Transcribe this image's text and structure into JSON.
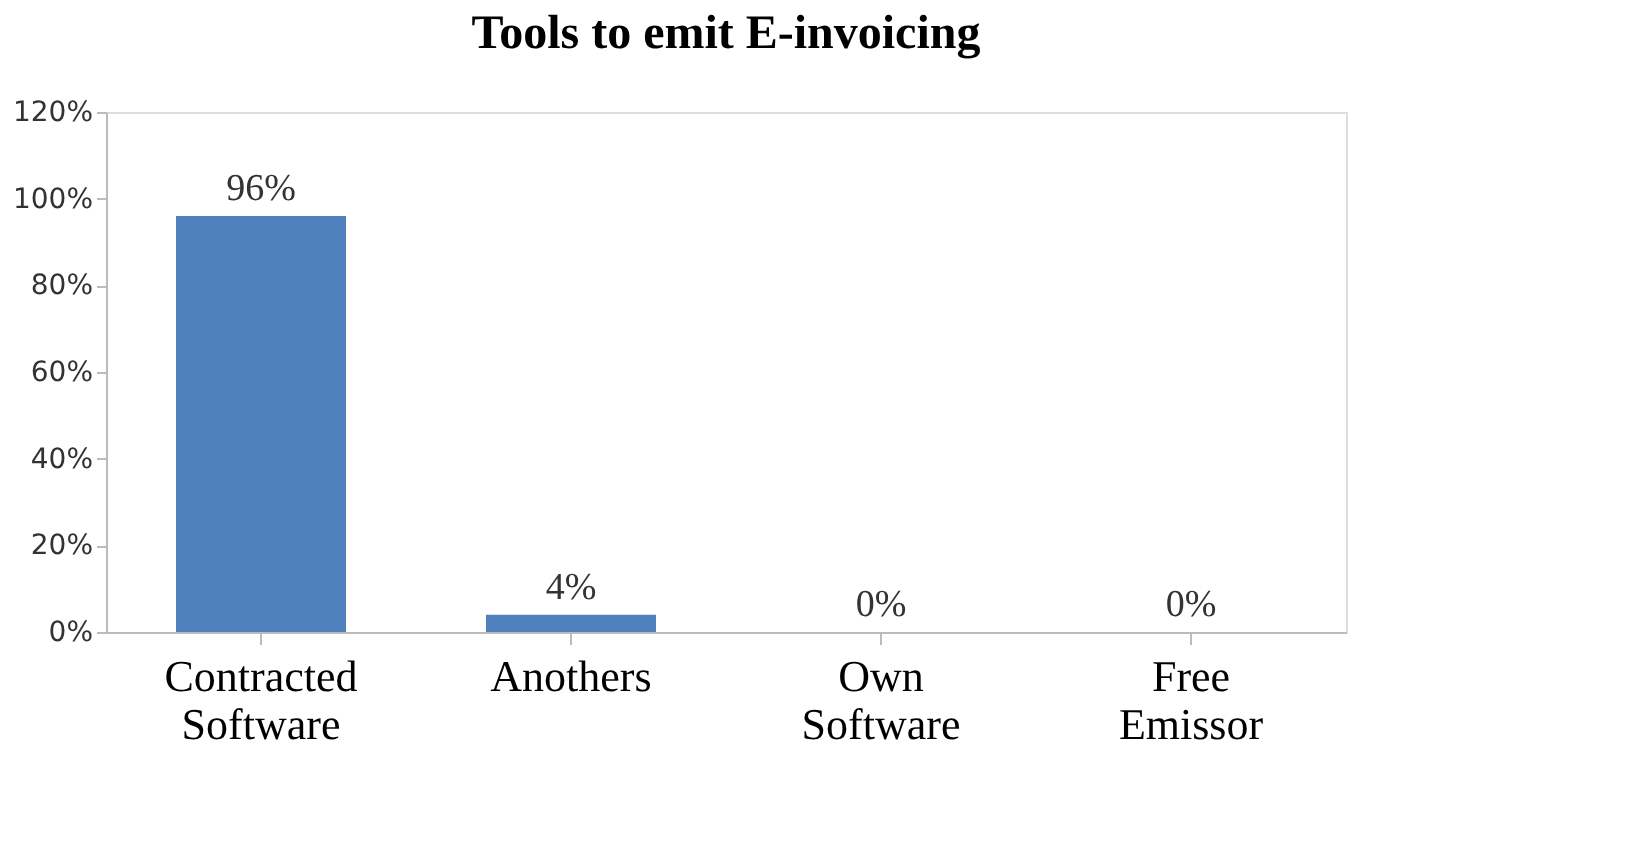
{
  "chart_data": {
    "type": "bar",
    "title": "Tools to emit E-invoicing",
    "categories": [
      "Contracted Software",
      "Anothers",
      "Own Software",
      "Free Emissor"
    ],
    "values": [
      96,
      4,
      0,
      0
    ],
    "color": "#4f81bd",
    "value_labels": [
      "96%",
      "4%",
      "0%",
      "0%"
    ],
    "ylim": [
      0,
      120
    ],
    "yticks": [
      {
        "value": 0,
        "label": "0%"
      },
      {
        "value": 20,
        "label": "20%"
      },
      {
        "value": 40,
        "label": "40%"
      },
      {
        "value": 60,
        "label": "60%"
      },
      {
        "value": 80,
        "label": "80%"
      },
      {
        "value": 100,
        "label": "100%"
      },
      {
        "value": 120,
        "label": "120%"
      }
    ],
    "grid": false
  }
}
